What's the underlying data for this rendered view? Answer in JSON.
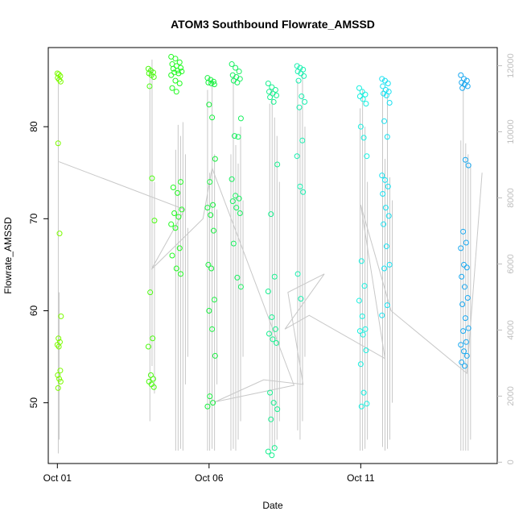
{
  "chart_data": {
    "type": "scatter",
    "title": "ATOM3 Southbound Flowrate_AMSSD",
    "xlabel": "Date",
    "ylabel": "Flowrate_AMSSD",
    "xlim_days": [
      -0.3,
      14.5
    ],
    "ylim": [
      43.4,
      88.6
    ],
    "y2lim": [
      -40,
      12550
    ],
    "x_ticks": [
      {
        "day": 0,
        "label": "Oct 01"
      },
      {
        "day": 5,
        "label": "Oct 06"
      },
      {
        "day": 10,
        "label": "Oct 11"
      }
    ],
    "y_ticks": [
      50,
      60,
      70,
      80
    ],
    "y2_ticks": [
      0,
      2000,
      4000,
      6000,
      8000,
      10000,
      12000
    ],
    "y2_tick_color": "#bebebe",
    "point_color_scale": [
      "#7CFC00",
      "#00FF40",
      "#00FFE0",
      "#00A0FF"
    ],
    "grey_line_color": "#c8c8c8",
    "trend_line": [
      [
        0.05,
        76.2
      ],
      [
        4.2,
        71.0
      ],
      [
        3.1,
        64.5
      ],
      [
        4.8,
        70.0
      ],
      [
        5.1,
        75.5
      ],
      [
        7.8,
        51.9
      ],
      [
        5.2,
        50.1
      ],
      [
        6.8,
        52.5
      ],
      [
        8.1,
        52.0
      ],
      [
        7.6,
        62.0
      ],
      [
        8.8,
        64.0
      ],
      [
        7.5,
        58.0
      ],
      [
        8.3,
        59.5
      ],
      [
        10.8,
        54.8
      ],
      [
        10.0,
        71.5
      ],
      [
        11.0,
        60.0
      ],
      [
        13.5,
        53.2
      ],
      [
        14.0,
        75.0
      ]
    ],
    "grey_bars": [
      {
        "x": 0.03,
        "y0": 44.5,
        "y1": 85.5
      },
      {
        "x": 0.06,
        "y0": 46.0,
        "y1": 62.0
      },
      {
        "x": 3.05,
        "y0": 48.0,
        "y1": 86.5
      },
      {
        "x": 3.12,
        "y0": 54.0,
        "y1": 87.3
      },
      {
        "x": 3.2,
        "y0": 51.0,
        "y1": 74.0
      },
      {
        "x": 3.9,
        "y0": 44.8,
        "y1": 77.5
      },
      {
        "x": 3.98,
        "y0": 44.8,
        "y1": 80.2
      },
      {
        "x": 4.06,
        "y0": 45.0,
        "y1": 79.0
      },
      {
        "x": 4.14,
        "y0": 44.8,
        "y1": 80.5
      },
      {
        "x": 4.22,
        "y0": 52.0,
        "y1": 77.0
      },
      {
        "x": 4.3,
        "y0": 55.0,
        "y1": 69.0
      },
      {
        "x": 4.95,
        "y0": 44.8,
        "y1": 84.0
      },
      {
        "x": 5.02,
        "y0": 44.8,
        "y1": 75.0
      },
      {
        "x": 5.1,
        "y0": 45.0,
        "y1": 85.0
      },
      {
        "x": 5.18,
        "y0": 44.8,
        "y1": 77.0
      },
      {
        "x": 5.26,
        "y0": 52.0,
        "y1": 71.0
      },
      {
        "x": 5.72,
        "y0": 44.8,
        "y1": 77.0
      },
      {
        "x": 5.8,
        "y0": 45.0,
        "y1": 85.5
      },
      {
        "x": 5.88,
        "y0": 44.8,
        "y1": 78.0
      },
      {
        "x": 5.96,
        "y0": 46.0,
        "y1": 76.0
      },
      {
        "x": 6.04,
        "y0": 48.0,
        "y1": 80.0
      },
      {
        "x": 6.12,
        "y0": 55.0,
        "y1": 72.0
      },
      {
        "x": 7.0,
        "y0": 44.8,
        "y1": 82.5
      },
      {
        "x": 7.08,
        "y0": 44.8,
        "y1": 84.0
      },
      {
        "x": 7.16,
        "y0": 45.0,
        "y1": 81.0
      },
      {
        "x": 7.24,
        "y0": 46.0,
        "y1": 79.0
      },
      {
        "x": 7.32,
        "y0": 48.0,
        "y1": 74.0
      },
      {
        "x": 7.92,
        "y0": 47.0,
        "y1": 85.0
      },
      {
        "x": 8.0,
        "y0": 46.0,
        "y1": 82.0
      },
      {
        "x": 8.08,
        "y0": 48.0,
        "y1": 86.0
      },
      {
        "x": 8.16,
        "y0": 55.0,
        "y1": 80.0
      },
      {
        "x": 9.98,
        "y0": 44.8,
        "y1": 82.0
      },
      {
        "x": 10.06,
        "y0": 44.8,
        "y1": 84.0
      },
      {
        "x": 10.14,
        "y0": 45.0,
        "y1": 80.0
      },
      {
        "x": 10.22,
        "y0": 46.0,
        "y1": 74.0
      },
      {
        "x": 10.72,
        "y0": 45.2,
        "y1": 84.0
      },
      {
        "x": 10.8,
        "y0": 44.8,
        "y1": 76.5
      },
      {
        "x": 10.88,
        "y0": 45.0,
        "y1": 83.5
      },
      {
        "x": 10.96,
        "y0": 46.0,
        "y1": 74.5
      },
      {
        "x": 11.04,
        "y0": 50.0,
        "y1": 72.0
      },
      {
        "x": 13.3,
        "y0": 44.8,
        "y1": 78.5
      },
      {
        "x": 13.38,
        "y0": 44.8,
        "y1": 85.0
      },
      {
        "x": 13.46,
        "y0": 44.8,
        "y1": 78.2
      },
      {
        "x": 13.54,
        "y0": 44.8,
        "y1": 77.0
      },
      {
        "x": 13.62,
        "y0": 46.0,
        "y1": 76.0
      }
    ],
    "point_groups": [
      {
        "x0": 0.0,
        "x1": 0.12,
        "color": "#7CFC00",
        "y": [
          85.8,
          85.7,
          85.5,
          85.3,
          85.1,
          84.9,
          78.2,
          68.4,
          59.4,
          57.0,
          56.6,
          56.3,
          56.1,
          53.5,
          53.0,
          52.6,
          52.3,
          51.6
        ]
      },
      {
        "x0": 3.0,
        "x1": 3.2,
        "color": "#4CFA10",
        "y": [
          86.3,
          86.1,
          85.9,
          85.8,
          85.6,
          85.4,
          84.4,
          74.4,
          69.8,
          62.0,
          57.0,
          56.1,
          53.0,
          52.6,
          52.3,
          52.0,
          51.7
        ]
      },
      {
        "x0": 3.75,
        "x1": 4.1,
        "color": "#20FA20",
        "y": [
          87.6,
          87.4,
          87.0,
          86.8,
          86.6,
          86.4,
          86.3,
          86.1,
          86.0,
          85.9,
          85.8,
          85.6,
          85.0,
          84.7,
          84.2,
          83.8,
          74.0,
          73.4,
          72.8,
          71.0,
          70.6,
          70.2,
          69.4,
          69.0,
          66.8,
          66.0,
          64.6,
          64.0
        ]
      },
      {
        "x0": 4.95,
        "x1": 5.2,
        "color": "#19F040",
        "y": [
          85.3,
          85.1,
          84.9,
          84.8,
          84.7,
          84.6,
          82.4,
          81.0,
          76.5,
          74.0,
          71.5,
          71.2,
          70.4,
          68.7,
          65.0,
          64.6,
          61.2,
          60.0,
          58.0,
          55.1,
          50.7,
          50.0,
          49.6
        ]
      },
      {
        "x0": 5.75,
        "x1": 6.05,
        "color": "#19F060",
        "y": [
          86.8,
          86.4,
          86.0,
          85.6,
          85.4,
          85.2,
          85.0,
          84.8,
          80.9,
          79.0,
          78.9,
          74.3,
          72.5,
          72.2,
          71.9,
          71.2,
          70.6,
          67.3,
          63.6,
          62.6
        ]
      },
      {
        "x0": 6.95,
        "x1": 7.25,
        "color": "#19F090",
        "y": [
          84.7,
          84.3,
          84.0,
          83.8,
          83.6,
          83.4,
          83.2,
          82.7,
          75.9,
          70.5,
          63.7,
          62.1,
          59.3,
          58.0,
          57.5,
          56.9,
          56.5,
          51.1,
          50.0,
          49.3,
          48.2,
          45.1,
          44.7,
          44.3
        ]
      },
      {
        "x0": 7.9,
        "x1": 8.15,
        "color": "#19F0B0",
        "y": [
          86.6,
          86.4,
          86.2,
          86.0,
          85.8,
          85.5,
          85.0,
          83.3,
          82.7,
          82.1,
          78.5,
          76.8,
          73.5,
          72.9,
          64.0,
          61.3
        ]
      },
      {
        "x0": 9.95,
        "x1": 10.2,
        "color": "#19F0E0",
        "y": [
          84.2,
          83.8,
          83.5,
          83.3,
          83.0,
          82.5,
          80.0,
          78.8,
          76.8,
          65.4,
          62.7,
          61.1,
          59.4,
          58.0,
          57.8,
          57.4,
          55.7,
          54.2,
          51.1,
          49.9,
          49.6
        ]
      },
      {
        "x0": 10.7,
        "x1": 10.95,
        "color": "#19E0F0",
        "y": [
          85.2,
          85.0,
          84.7,
          84.4,
          84.0,
          83.8,
          83.6,
          83.4,
          82.6,
          80.6,
          78.9,
          74.7,
          74.2,
          73.5,
          72.7,
          71.2,
          70.3,
          69.4,
          67.0,
          65.0,
          64.6,
          60.6,
          59.5
        ]
      },
      {
        "x0": 13.3,
        "x1": 13.55,
        "color": "#19A8F0",
        "y": [
          85.6,
          85.2,
          85.0,
          84.8,
          84.6,
          84.4,
          84.2,
          76.4,
          75.8,
          68.6,
          67.4,
          66.8,
          65.0,
          64.7,
          63.7,
          62.6,
          61.4,
          60.7,
          59.2,
          58.1,
          57.8,
          56.6,
          56.3,
          55.6,
          55.1,
          54.4,
          54.0
        ]
      }
    ]
  }
}
